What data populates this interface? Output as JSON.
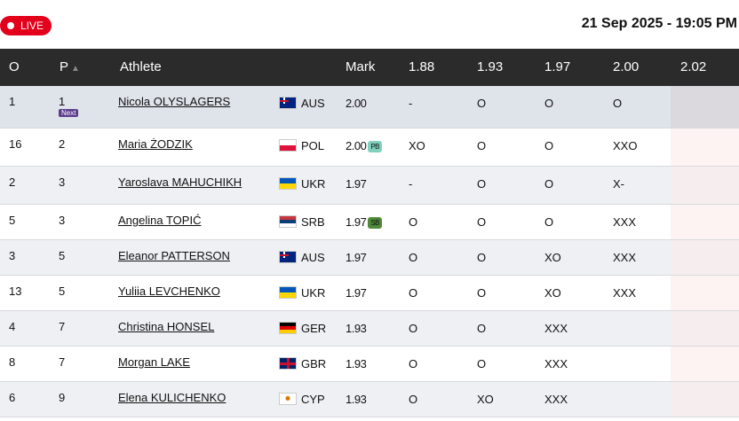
{
  "live_label": "LIVE",
  "datetime": "21 Sep 2025 - 19:05 PM",
  "headers": {
    "order": "O",
    "place": "P",
    "athlete": "Athlete",
    "mark": "Mark",
    "heights": [
      "1.88",
      "1.93",
      "1.97",
      "2.00",
      "2.02"
    ]
  },
  "sort_icon": "triangle-up-icon",
  "rows": [
    {
      "order": "1",
      "place": "1",
      "next": "Next",
      "name": "Nicola OLYSLAGERS",
      "country": "AUS",
      "mark": "2.00",
      "badge": "",
      "attempts": [
        "-",
        "O",
        "O",
        "O",
        ""
      ]
    },
    {
      "order": "16",
      "place": "2",
      "name": "Maria ŻODZIK",
      "country": "POL",
      "mark": "2.00",
      "badge": "PB",
      "attempts": [
        "XO",
        "O",
        "O",
        "XXO",
        ""
      ]
    },
    {
      "order": "2",
      "place": "3",
      "name": "Yaroslava MAHUCHIKH",
      "country": "UKR",
      "mark": "1.97",
      "badge": "",
      "attempts": [
        "-",
        "O",
        "O",
        "X-",
        ""
      ]
    },
    {
      "order": "5",
      "place": "3",
      "name": "Angelina TOPIĆ",
      "country": "SRB",
      "mark": "1.97",
      "badge": "SB",
      "attempts": [
        "O",
        "O",
        "O",
        "XXX",
        ""
      ]
    },
    {
      "order": "3",
      "place": "5",
      "name": "Eleanor PATTERSON",
      "country": "AUS",
      "mark": "1.97",
      "badge": "",
      "attempts": [
        "O",
        "O",
        "XO",
        "XXX",
        ""
      ]
    },
    {
      "order": "13",
      "place": "5",
      "name": "Yuliia LEVCHENKO",
      "country": "UKR",
      "mark": "1.97",
      "badge": "",
      "attempts": [
        "O",
        "O",
        "XO",
        "XXX",
        ""
      ]
    },
    {
      "order": "4",
      "place": "7",
      "name": "Christina HONSEL",
      "country": "GER",
      "mark": "1.93",
      "badge": "",
      "attempts": [
        "O",
        "O",
        "XXX",
        "",
        ""
      ]
    },
    {
      "order": "8",
      "place": "7",
      "name": "Morgan LAKE",
      "country": "GBR",
      "mark": "1.93",
      "badge": "",
      "attempts": [
        "O",
        "O",
        "XXX",
        "",
        ""
      ]
    },
    {
      "order": "6",
      "place": "9",
      "name": "Elena KULICHENKO",
      "country": "CYP",
      "mark": "1.93",
      "badge": "",
      "attempts": [
        "O",
        "XO",
        "XXX",
        "",
        ""
      ]
    }
  ],
  "colors": {
    "live": "#e3001b",
    "header_bg": "#2b2b2b",
    "pb": "#7fd0bd",
    "sb": "#4f8a3a",
    "next": "#5b3c8c"
  }
}
